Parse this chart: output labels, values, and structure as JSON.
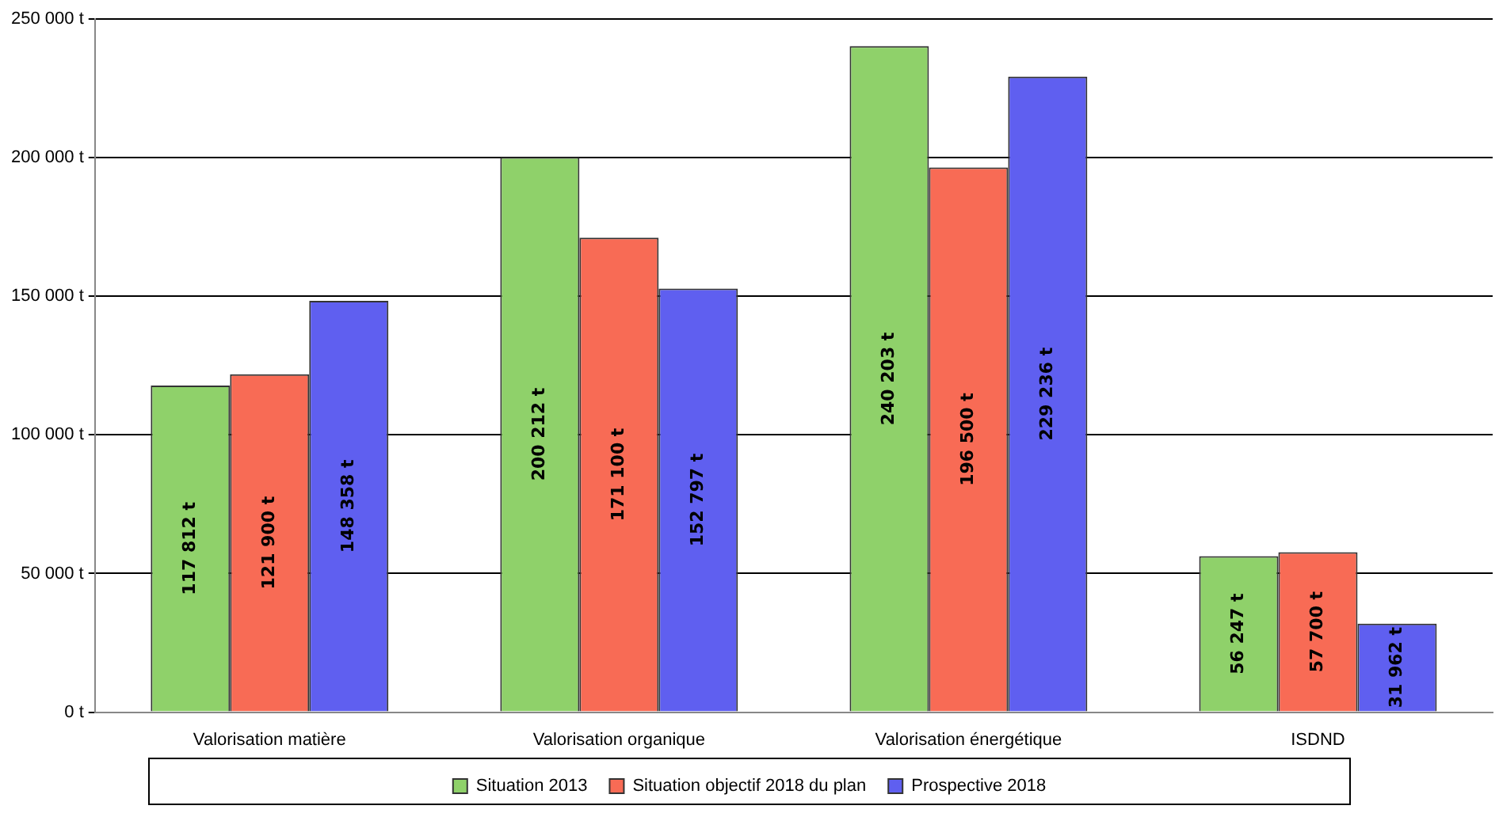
{
  "chart_data": {
    "type": "bar",
    "categories": [
      "Valorisation matière",
      "Valorisation organique",
      "Valorisation énergétique",
      "ISDND"
    ],
    "series": [
      {
        "name": "Situation 2013",
        "color": "#8fd16a",
        "values": [
          117812,
          200212,
          240203,
          56247
        ],
        "value_labels": [
          "117 812 t",
          "200 212 t",
          "240 203 t",
          "56 247 t"
        ]
      },
      {
        "name": "Situation objectif 2018 du plan",
        "color": "#f86b55",
        "values": [
          121900,
          171100,
          196500,
          57700
        ],
        "value_labels": [
          "121 900 t",
          "171 100 t",
          "196 500 t",
          "57 700 t"
        ]
      },
      {
        "name": "Prospective 2018",
        "color": "#5f5ff0",
        "values": [
          148358,
          152797,
          229236,
          31962
        ],
        "value_labels": [
          "148 358 t",
          "152 797 t",
          "229 236 t",
          "31 962 t"
        ]
      }
    ],
    "ylim": [
      0,
      250000
    ],
    "yticks": [
      {
        "value": 0,
        "label": "0 t"
      },
      {
        "value": 50000,
        "label": "50 000 t"
      },
      {
        "value": 100000,
        "label": "100 000 t"
      },
      {
        "value": 150000,
        "label": "150 000 t"
      },
      {
        "value": 200000,
        "label": "200 000 t"
      },
      {
        "value": 250000,
        "label": "250 000 t"
      }
    ],
    "grid": "y",
    "legend": "bottom"
  }
}
